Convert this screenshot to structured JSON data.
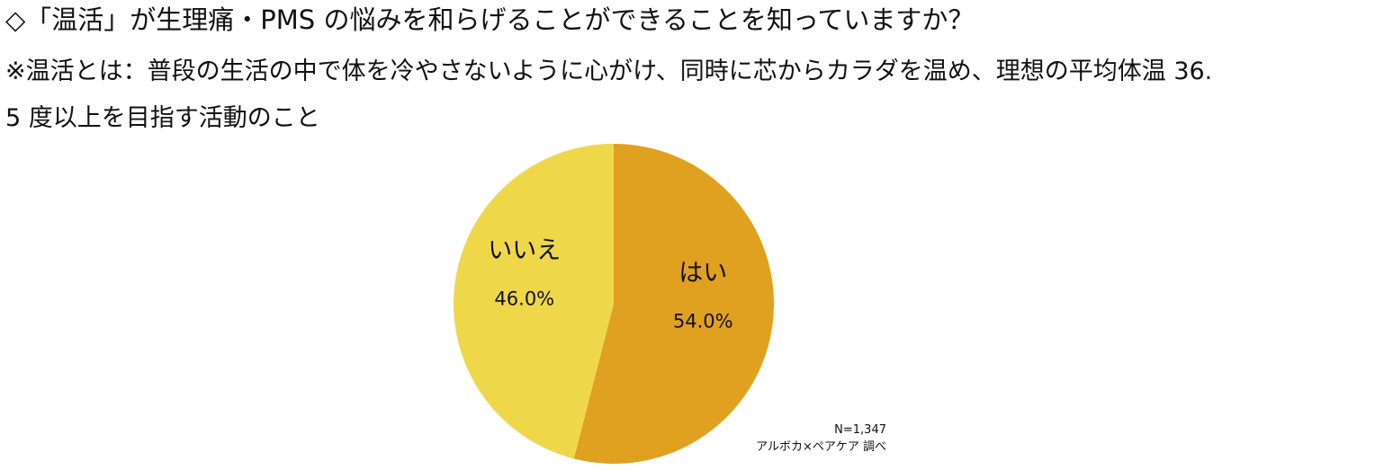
{
  "chart_data": {
    "type": "pie",
    "title": "◇「温活」が生理痛・PMS の悩みを和らげることができることを知っていますか？",
    "subtitle": [
      "※温活とは：普段の生活の中で体を冷やさないように心がけ、同時に芯からカラダを温め、理想の平均体温 36.",
      "5 度以上を目指す活動のこと"
    ],
    "categories": [
      "はい",
      "いいえ"
    ],
    "values": [
      54.0,
      46.0
    ],
    "value_labels": [
      "54.0%",
      "46.0%"
    ],
    "colors": [
      "#E0A020",
      "#EED84A"
    ],
    "annotations": [
      "N=1,347",
      "アルボカ×ペアケア 調べ"
    ]
  }
}
